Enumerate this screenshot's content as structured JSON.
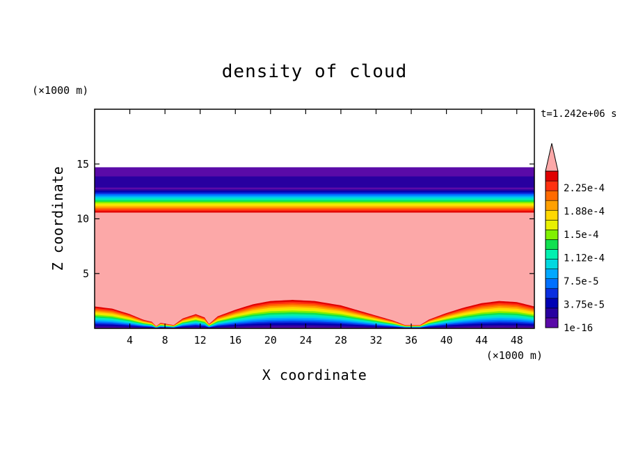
{
  "chart_data": {
    "type": "heatmap",
    "title": "density of cloud",
    "xlabel": "X coordinate",
    "ylabel": "Z coordinate",
    "x_unit": "(×1000 m)",
    "z_unit": "(×1000 m)",
    "time_label": "t=1.242e+06 s",
    "xlim": [
      0,
      50
    ],
    "ylim": [
      0,
      20
    ],
    "x_ticks": [
      4,
      8,
      12,
      16,
      20,
      24,
      28,
      32,
      36,
      40,
      44,
      48
    ],
    "y_ticks": [
      5,
      10,
      15
    ],
    "grid": false,
    "colorbar": {
      "tick_labels": [
        "2.25e-4",
        "1.88e-4",
        "1.5e-4",
        "1.12e-4",
        "7.5e-5",
        "3.75e-5",
        "1e-16"
      ],
      "colors": [
        "#5a0aa8",
        "#2800a0",
        "#0000b4",
        "#0a2ee0",
        "#0070ff",
        "#00a8ff",
        "#00d8e0",
        "#00f0b0",
        "#10e050",
        "#80f000",
        "#e8f000",
        "#ffd800",
        "#ffa000",
        "#ff6a00",
        "#ff3010",
        "#e00000"
      ],
      "over_color": "#fca8a8"
    },
    "fields": {
      "saturated_value": "> 2.25e-4",
      "upper_layer_z": [
        10.6,
        14.7
      ],
      "lower_layer_top_z": [
        [
          0,
          2.0
        ],
        [
          2,
          1.8
        ],
        [
          4,
          1.3
        ],
        [
          5.5,
          0.8
        ],
        [
          6.5,
          0.6
        ],
        [
          7,
          0.2
        ],
        [
          7.5,
          0.5
        ],
        [
          9,
          0.3
        ],
        [
          10,
          0.9
        ],
        [
          11.5,
          1.3
        ],
        [
          12.5,
          1.0
        ],
        [
          13,
          0.4
        ],
        [
          14,
          1.1
        ],
        [
          16,
          1.7
        ],
        [
          18,
          2.2
        ],
        [
          20,
          2.5
        ],
        [
          22.5,
          2.6
        ],
        [
          25,
          2.5
        ],
        [
          28,
          2.1
        ],
        [
          31,
          1.4
        ],
        [
          34,
          0.7
        ],
        [
          35.3,
          0.3
        ],
        [
          37,
          0.3
        ],
        [
          38,
          0.8
        ],
        [
          40,
          1.4
        ],
        [
          42,
          1.9
        ],
        [
          44,
          2.3
        ],
        [
          46,
          2.5
        ],
        [
          48,
          2.4
        ],
        [
          50,
          2.0
        ]
      ]
    }
  }
}
